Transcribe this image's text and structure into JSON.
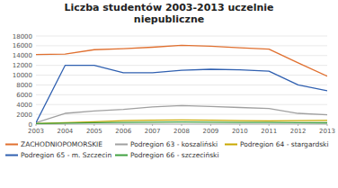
{
  "chart_data": {
    "type": "line",
    "title": "Liczba studentów 2003-2013 uczelnie\nniepubliczne",
    "x": [
      2003,
      2004,
      2005,
      2006,
      2007,
      2008,
      2009,
      2010,
      2011,
      2012,
      2013
    ],
    "series": [
      {
        "name": "ZACHODNIOPOMORSKIE",
        "color": "#E07030",
        "values": [
          14200,
          14300,
          15200,
          15400,
          15700,
          16100,
          15900,
          15600,
          15300,
          12500,
          9800
        ]
      },
      {
        "name": "Podregion 63 - koszaliński",
        "color": "#A0A0A0",
        "values": [
          300,
          2200,
          2700,
          3000,
          3500,
          3800,
          3600,
          3400,
          3200,
          2200,
          1900
        ]
      },
      {
        "name": "Podregion 64 - stargardski",
        "color": "#C8A800",
        "values": [
          100,
          300,
          500,
          700,
          800,
          850,
          800,
          700,
          650,
          700,
          750
        ]
      },
      {
        "name": "Podregion 65 - m. Szczecin",
        "color": "#3060B0",
        "values": [
          300,
          12000,
          12000,
          10500,
          10500,
          11000,
          11200,
          11100,
          10800,
          8000,
          6800
        ]
      },
      {
        "name": "Podregion 66 - szczeciński",
        "color": "#40A040",
        "values": [
          100,
          200,
          300,
          350,
          400,
          450,
          400,
          350,
          350,
          300,
          280
        ]
      }
    ],
    "xlim": [
      2003,
      2013
    ],
    "xticks": [
      2003,
      2004,
      2005,
      2006,
      2007,
      2008,
      2009,
      2010,
      2011,
      2012,
      2013
    ],
    "ylim": [
      0,
      18000
    ],
    "yticks": [
      0,
      2000,
      4000,
      6000,
      8000,
      10000,
      12000,
      14000,
      16000,
      18000
    ],
    "grid": true,
    "legend": "bottom"
  }
}
